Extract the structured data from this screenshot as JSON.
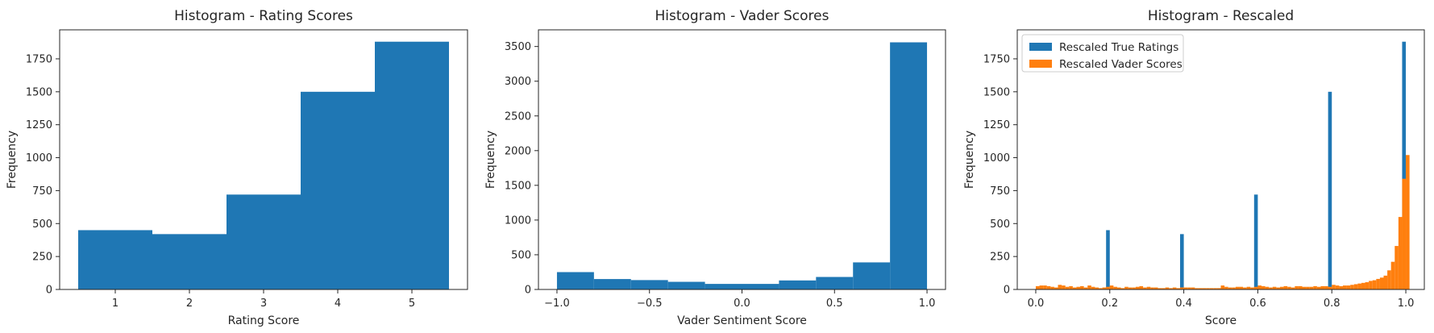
{
  "chart_data": [
    {
      "type": "bar",
      "title": "Histogram - Rating Scores",
      "xlabel": "Rating Score",
      "ylabel": "Frequency",
      "xlim": [
        0.25,
        5.75
      ],
      "ylim": [
        0,
        1970
      ],
      "xticks": [
        1,
        2,
        3,
        4,
        5
      ],
      "xtick_labels": [
        "1",
        "2",
        "3",
        "4",
        "5"
      ],
      "yticks": [
        0,
        250,
        500,
        750,
        1000,
        1250,
        1500,
        1750
      ],
      "ytick_labels": [
        "0",
        "250",
        "500",
        "750",
        "1000",
        "1250",
        "1500",
        "1750"
      ],
      "grid": false,
      "color": "#1f77b4",
      "series": [
        {
          "bins": [
            [
              0.5,
              1.5
            ],
            [
              1.5,
              2.5
            ],
            [
              2.5,
              3.5
            ],
            [
              3.5,
              4.5
            ],
            [
              4.5,
              5.5
            ]
          ],
          "values": [
            450,
            420,
            720,
            1500,
            1880
          ]
        }
      ]
    },
    {
      "type": "bar",
      "title": "Histogram - Vader Scores",
      "xlabel": "Vader Sentiment Score",
      "ylabel": "Frequency",
      "xlim": [
        -1.1,
        1.1
      ],
      "ylim": [
        0,
        3740
      ],
      "xticks": [
        -1.0,
        -0.5,
        0.0,
        0.5,
        1.0
      ],
      "xtick_labels": [
        "−1.0",
        "−0.5",
        "0.0",
        "0.5",
        "1.0"
      ],
      "yticks": [
        0,
        500,
        1000,
        1500,
        2000,
        2500,
        3000,
        3500
      ],
      "ytick_labels": [
        "0",
        "500",
        "1000",
        "1500",
        "2000",
        "2500",
        "3000",
        "3500"
      ],
      "grid": false,
      "color": "#1f77b4",
      "series": [
        {
          "bins": [
            [
              -1.0,
              -0.8
            ],
            [
              -0.8,
              -0.6
            ],
            [
              -0.6,
              -0.4
            ],
            [
              -0.4,
              -0.2
            ],
            [
              -0.2,
              0.0
            ],
            [
              0.0,
              0.2
            ],
            [
              0.2,
              0.4
            ],
            [
              0.4,
              0.6
            ],
            [
              0.6,
              0.8
            ],
            [
              0.8,
              1.0
            ]
          ],
          "values": [
            250,
            150,
            135,
            110,
            80,
            80,
            130,
            180,
            390,
            3560
          ]
        }
      ]
    },
    {
      "type": "bar",
      "title": "Histogram - Rescaled",
      "xlabel": "Score",
      "ylabel": "Frequency",
      "xlim": [
        -0.05,
        1.05
      ],
      "ylim": [
        0,
        1970
      ],
      "xticks": [
        0.0,
        0.2,
        0.4,
        0.6,
        0.8,
        1.0
      ],
      "xtick_labels": [
        "0.0",
        "0.2",
        "0.4",
        "0.6",
        "0.8",
        "1.0"
      ],
      "yticks": [
        0,
        250,
        500,
        750,
        1000,
        1250,
        1500,
        1750
      ],
      "ytick_labels": [
        "0",
        "250",
        "500",
        "750",
        "1000",
        "1250",
        "1500",
        "1750"
      ],
      "grid": false,
      "legend_position": "top-left",
      "series": [
        {
          "name": "Rescaled True Ratings",
          "color": "#1f77b4",
          "bin_width": 0.01,
          "bins_start": [
            0.19,
            0.39,
            0.59,
            0.79,
            0.99
          ],
          "values": [
            450,
            420,
            720,
            1500,
            1880
          ]
        },
        {
          "name": "Rescaled Vader Scores",
          "color": "#ff7f0e",
          "bin_width": 0.01,
          "bins_start": 0.0,
          "values": [
            25,
            30,
            30,
            25,
            20,
            15,
            35,
            30,
            20,
            25,
            15,
            20,
            25,
            15,
            30,
            20,
            15,
            10,
            15,
            20,
            30,
            20,
            15,
            10,
            20,
            15,
            15,
            20,
            25,
            15,
            20,
            15,
            15,
            10,
            10,
            15,
            10,
            15,
            10,
            15,
            15,
            15,
            15,
            10,
            10,
            10,
            10,
            10,
            10,
            10,
            30,
            20,
            15,
            15,
            20,
            20,
            15,
            20,
            15,
            20,
            30,
            25,
            20,
            15,
            20,
            15,
            20,
            25,
            20,
            15,
            25,
            25,
            20,
            20,
            20,
            25,
            20,
            25,
            25,
            20,
            35,
            30,
            25,
            30,
            30,
            35,
            40,
            45,
            50,
            55,
            65,
            70,
            80,
            90,
            105,
            145,
            210,
            330,
            550,
            840,
            1020
          ]
        }
      ]
    }
  ]
}
